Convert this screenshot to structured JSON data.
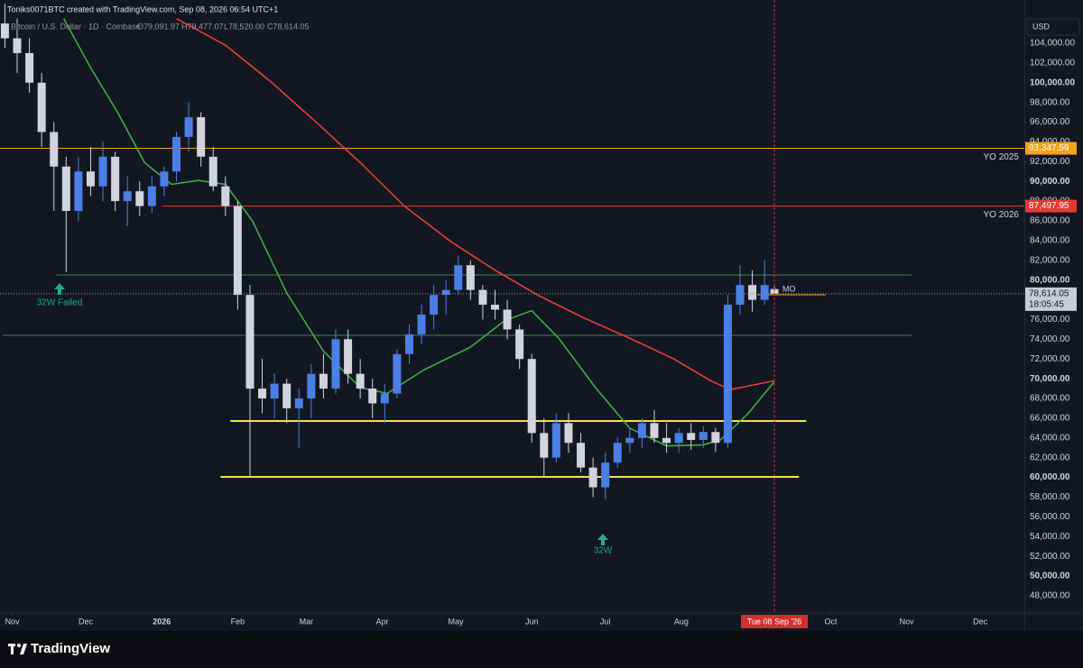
{
  "header": {
    "credit": "Toniks0071BTC created with TradingView.com, Sep 08, 2026 06:54 UTC+1",
    "symbol": "Bitcoin / U.S. Dollar · 1D · Coinbase",
    "ohlc": [
      "O79,091.97",
      "H79,477.07",
      "L78,520.00",
      "C78,614.05"
    ],
    "currency": "USD"
  },
  "footer": {
    "brand": "TradingView"
  },
  "chart_data": {
    "type": "candlestick",
    "xlim": [
      "2025-10-27",
      "2026-12-19"
    ],
    "xticks": [
      {
        "value": "2025-11-01",
        "label": "Nov"
      },
      {
        "value": "2025-12-01",
        "label": "Dec"
      },
      {
        "value": "2026-01-01",
        "label": "2026"
      },
      {
        "value": "2026-02-01",
        "label": "Feb"
      },
      {
        "value": "2026-03-01",
        "label": "Mar"
      },
      {
        "value": "2026-04-01",
        "label": "Apr"
      },
      {
        "value": "2026-05-01",
        "label": "May"
      },
      {
        "value": "2026-06-01",
        "label": "Jun"
      },
      {
        "value": "2026-07-01",
        "label": "Jul"
      },
      {
        "value": "2026-08-01",
        "label": "Aug"
      },
      {
        "value": "2026-10-01",
        "label": "Oct"
      },
      {
        "value": "2026-11-01",
        "label": "Nov"
      },
      {
        "value": "2026-12-01",
        "label": "Dec"
      }
    ],
    "ylim": [
      46260,
      108380
    ],
    "yticks": [
      {
        "value": 48000,
        "label": "48,000.00"
      },
      {
        "value": 50000,
        "label": "50,000.00"
      },
      {
        "value": 52000,
        "label": "52,000.00"
      },
      {
        "value": 54000,
        "label": "54,000.00"
      },
      {
        "value": 56000,
        "label": "56,000.00"
      },
      {
        "value": 58000,
        "label": "58,000.00"
      },
      {
        "value": 60000,
        "label": "60,000.00"
      },
      {
        "value": 62000,
        "label": "62,000.00"
      },
      {
        "value": 64000,
        "label": "64,000.00"
      },
      {
        "value": 66000,
        "label": "66,000.00"
      },
      {
        "value": 68000,
        "label": "68,000.00"
      },
      {
        "value": 70000,
        "label": "70,000.00"
      },
      {
        "value": 72000,
        "label": "72,000.00"
      },
      {
        "value": 74000,
        "label": "74,000.00"
      },
      {
        "value": 76000,
        "label": "76,000.00"
      },
      {
        "value": 78000,
        "label": "78,000.00"
      },
      {
        "value": 80000,
        "label": "80,000.00"
      },
      {
        "value": 82000,
        "label": "82,000.00"
      },
      {
        "value": 84000,
        "label": "84,000.00"
      },
      {
        "value": 86000,
        "label": "86,000.00"
      },
      {
        "value": 88000,
        "label": "88,000.00"
      },
      {
        "value": 90000,
        "label": "90,000.00"
      },
      {
        "value": 92000,
        "label": "92,000.00"
      },
      {
        "value": 94000,
        "label": "94,000.00"
      },
      {
        "value": 96000,
        "label": "96,000.00"
      },
      {
        "value": 98000,
        "label": "98,000.00"
      },
      {
        "value": 100000,
        "label": "100,000.00"
      },
      {
        "value": 102000,
        "label": "102,000.00"
      },
      {
        "value": 104000,
        "label": "104,000.00"
      }
    ],
    "grid": false,
    "candles": {
      "up_color": "#4c7fe6",
      "down_color": "#d1d4dc",
      "x": [
        "2025-10-29",
        "2025-11-03",
        "2025-11-08",
        "2025-11-13",
        "2025-11-18",
        "2025-11-23",
        "2025-11-28",
        "2025-12-03",
        "2025-12-08",
        "2025-12-13",
        "2025-12-18",
        "2025-12-23",
        "2025-12-28",
        "2026-01-02",
        "2026-01-07",
        "2026-01-12",
        "2026-01-17",
        "2026-01-22",
        "2026-01-27",
        "2026-02-01",
        "2026-02-06",
        "2026-02-11",
        "2026-02-16",
        "2026-02-21",
        "2026-02-26",
        "2026-03-03",
        "2026-03-08",
        "2026-03-13",
        "2026-03-18",
        "2026-03-23",
        "2026-03-28",
        "2026-04-02",
        "2026-04-07",
        "2026-04-12",
        "2026-04-17",
        "2026-04-22",
        "2026-04-27",
        "2026-05-02",
        "2026-05-07",
        "2026-05-12",
        "2026-05-17",
        "2026-05-22",
        "2026-05-27",
        "2026-06-01",
        "2026-06-06",
        "2026-06-11",
        "2026-06-16",
        "2026-06-21",
        "2026-06-26",
        "2026-07-01",
        "2026-07-06",
        "2026-07-11",
        "2026-07-16",
        "2026-07-21",
        "2026-07-26",
        "2026-07-31",
        "2026-08-05",
        "2026-08-10",
        "2026-08-15",
        "2026-08-20",
        "2026-08-25",
        "2026-08-30",
        "2026-09-04",
        "2026-09-08"
      ],
      "open": [
        106000,
        104500,
        103000,
        100000,
        95000,
        91500,
        87000,
        91000,
        89500,
        92500,
        88000,
        89000,
        87500,
        89500,
        91000,
        94500,
        96500,
        92500,
        89500,
        87500,
        78500,
        69000,
        68000,
        69500,
        67000,
        68000,
        70500,
        69000,
        74000,
        70500,
        69000,
        67500,
        68500,
        72500,
        74500,
        76500,
        78500,
        79000,
        81500,
        79000,
        77500,
        77000,
        75000,
        72000,
        64500,
        62000,
        65500,
        63500,
        61000,
        59000,
        61500,
        63500,
        64000,
        65500,
        64000,
        63500,
        64500,
        63800,
        64600,
        63500,
        77500,
        79500,
        78000,
        79091.97
      ],
      "high": [
        108000,
        106500,
        104500,
        101000,
        96000,
        92500,
        92500,
        93500,
        94000,
        93000,
        90500,
        90000,
        90500,
        91500,
        95000,
        98000,
        97000,
        93500,
        90500,
        88000,
        79500,
        72000,
        70500,
        70000,
        69000,
        71500,
        72500,
        75000,
        75000,
        72000,
        70000,
        69500,
        73000,
        75500,
        77500,
        79500,
        80000,
        82500,
        82000,
        79500,
        79000,
        78000,
        75500,
        72500,
        66000,
        66500,
        66500,
        64500,
        62000,
        62500,
        64000,
        65000,
        66000,
        66800,
        65500,
        65000,
        65500,
        65200,
        65000,
        78500,
        81500,
        81000,
        82000,
        79477.07
      ],
      "low": [
        103500,
        101000,
        99000,
        93500,
        87000,
        80800,
        86000,
        88500,
        88000,
        87000,
        85500,
        86500,
        86800,
        88500,
        90000,
        93000,
        91500,
        89000,
        86500,
        77000,
        60000,
        66500,
        66000,
        65500,
        63000,
        66000,
        68000,
        68500,
        69500,
        68000,
        66000,
        65500,
        68000,
        71500,
        73500,
        75000,
        76500,
        78500,
        78000,
        76000,
        76000,
        74000,
        71000,
        63500,
        60000,
        61500,
        62500,
        60500,
        58000,
        57800,
        61000,
        62500,
        63000,
        63500,
        62500,
        62500,
        62800,
        63000,
        62600,
        63000,
        76500,
        76800,
        77500,
        78520
      ],
      "close": [
        104500,
        103000,
        100000,
        95000,
        91500,
        87000,
        91000,
        89500,
        92500,
        88000,
        89000,
        87500,
        89500,
        91000,
        94500,
        96500,
        92500,
        89500,
        87500,
        78500,
        69000,
        68000,
        69500,
        67000,
        68000,
        70500,
        69000,
        74000,
        70500,
        69000,
        67500,
        68500,
        72500,
        74500,
        76500,
        78500,
        79000,
        81500,
        79000,
        77500,
        77000,
        75000,
        72000,
        64500,
        62000,
        65500,
        63500,
        61000,
        59000,
        61500,
        63500,
        64000,
        65500,
        64000,
        63500,
        64500,
        63800,
        64600,
        63500,
        77500,
        79500,
        78000,
        79500,
        78614.05
      ]
    },
    "moving_averages": [
      {
        "color": "#f0413c",
        "x": [
          "2026-01-07",
          "2026-01-27",
          "2026-02-14",
          "2026-03-05",
          "2026-03-23",
          "2026-04-10",
          "2026-04-29",
          "2026-05-17",
          "2026-06-04",
          "2026-06-22",
          "2026-07-11",
          "2026-07-29",
          "2026-08-13",
          "2026-08-21",
          "2026-09-08"
        ],
        "values": [
          106500,
          103800,
          100200,
          96000,
          91900,
          87500,
          83900,
          81000,
          78400,
          76200,
          74100,
          72000,
          69800,
          68900,
          69800
        ]
      },
      {
        "color": "#3fb54a",
        "x": [
          "2025-11-22",
          "2025-12-03",
          "2025-12-14",
          "2025-12-25",
          "2026-01-05",
          "2026-01-16",
          "2026-01-27",
          "2026-02-07",
          "2026-02-21",
          "2026-03-08",
          "2026-03-23",
          "2026-04-03",
          "2026-04-18",
          "2026-05-07",
          "2026-05-21",
          "2026-06-01",
          "2026-06-12",
          "2026-06-27",
          "2026-07-11",
          "2026-07-26",
          "2026-08-10",
          "2026-08-17",
          "2026-08-28",
          "2026-09-08"
        ],
        "values": [
          106500,
          101500,
          97000,
          91900,
          89700,
          90100,
          89700,
          86000,
          78700,
          72800,
          69100,
          68500,
          70900,
          73200,
          75900,
          76900,
          74100,
          69100,
          65000,
          63200,
          63300,
          63800,
          66400,
          69700
        ]
      }
    ],
    "levels": [
      {
        "value": 93347.59,
        "value_label": "93,347.59",
        "color": "#f7a21b",
        "text": "YO 2025"
      },
      {
        "value": 87497.95,
        "value_label": "87,497.95",
        "color": "#e53935",
        "from": "2026-01-01",
        "text": "YO 2026"
      },
      {
        "value": 80520,
        "color": "#3d8b40",
        "from": "2025-11-19",
        "to": "2026-11-03"
      },
      {
        "value": 74400,
        "color": "#3d8b40",
        "from": "2025-10-28",
        "to": "2026-11-03"
      },
      {
        "value": 65720,
        "color": "#f5e050",
        "from": "2026-01-29",
        "to": "2026-09-21"
      },
      {
        "value": 60050,
        "color": "#f5e050",
        "from": "2026-01-25",
        "to": "2026-09-18"
      },
      {
        "value": 78510,
        "color": "#f7a21b",
        "from": "2026-09-01",
        "to": "2026-09-29",
        "text": "MO"
      }
    ],
    "last_price": {
      "value": 78614.05,
      "label": "78,614.05",
      "countdown": "18:05:45"
    },
    "crosshair": {
      "x": "2026-09-08",
      "label": "Tue 08 Sep '26"
    },
    "annotations": [
      {
        "text": "32W Failed",
        "color": "#22ab94"
      },
      {
        "text": "32W",
        "color": "#22ab94"
      }
    ]
  }
}
